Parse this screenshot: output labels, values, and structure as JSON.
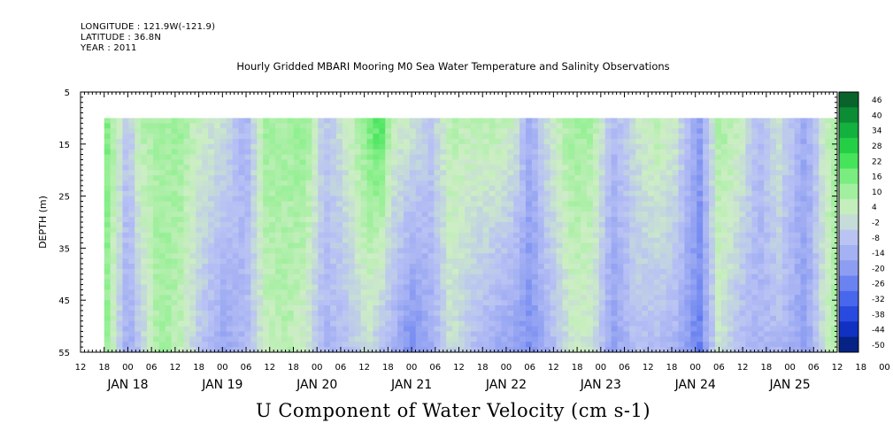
{
  "header": {
    "longitude": "LONGITUDE : 121.9W(-121.9)",
    "latitude": "LATITUDE : 36.8N",
    "year": "YEAR : 2011"
  },
  "chart_data": {
    "type": "heatmap",
    "title": "Hourly Gridded MBARI Mooring M0 Sea Water Temperature and Salinity Observations",
    "xlabel": "U Component of Water Velocity (cm s-1)",
    "ylabel": "DEPTH (m)",
    "y_ticks": [
      5,
      15,
      25,
      35,
      45,
      55
    ],
    "ylim": [
      55,
      5
    ],
    "data_depth_range": [
      10,
      55
    ],
    "hour_tick_labels": [
      "12",
      "18",
      "00",
      "06",
      "12",
      "18",
      "00",
      "06",
      "12",
      "18",
      "00",
      "06",
      "12",
      "18",
      "00",
      "06",
      "12",
      "18",
      "00",
      "06",
      "12",
      "18",
      "00",
      "06",
      "12",
      "18",
      "00",
      "06",
      "12",
      "18",
      "00",
      "06",
      "12",
      "18",
      "00",
      "06",
      "12"
    ],
    "day_labels": [
      "JAN 18",
      "JAN 19",
      "JAN 20",
      "JAN 21",
      "JAN 22",
      "JAN 23",
      "JAN 24",
      "JAN 25"
    ],
    "x_range": [
      "2011-01-17 12:00",
      "2011-01-25 12:00"
    ],
    "data_time_range": [
      "2011-01-17 18:00",
      "2011-01-25 12:00"
    ],
    "colorbar_levels": [
      "46",
      "40",
      "34",
      "28",
      "22",
      "16",
      "10",
      "4",
      "-2",
      "-8",
      "-14",
      "-20",
      "-26",
      "-32",
      "-38",
      "-44",
      "-50"
    ],
    "colorbar_range": [
      -50,
      50
    ],
    "colormap": [
      "#001a66",
      "#1437d6",
      "#4f6df0",
      "#8f9ff2",
      "#b9c2f4",
      "#cdeec4",
      "#8ef08e",
      "#2de04a",
      "#0ea73c",
      "#075d28"
    ],
    "velocity_pattern": [
      {
        "time": "2011-01-17 18:00",
        "u_surface": 22,
        "u_bottom": 18
      },
      {
        "time": "2011-01-17 21:00",
        "u_surface": 8,
        "u_bottom": 2
      },
      {
        "time": "2011-01-18 00:00",
        "u_surface": -6,
        "u_bottom": -14
      },
      {
        "time": "2011-01-18 03:00",
        "u_surface": 10,
        "u_bottom": -4
      },
      {
        "time": "2011-01-18 08:00",
        "u_surface": 12,
        "u_bottom": 14
      },
      {
        "time": "2011-01-18 13:00",
        "u_surface": 14,
        "u_bottom": 8
      },
      {
        "time": "2011-01-18 18:00",
        "u_surface": 6,
        "u_bottom": -4
      },
      {
        "time": "2011-01-19 00:00",
        "u_surface": 2,
        "u_bottom": -14
      },
      {
        "time": "2011-01-19 06:00",
        "u_surface": -10,
        "u_bottom": -8
      },
      {
        "time": "2011-01-19 11:00",
        "u_surface": 14,
        "u_bottom": 6
      },
      {
        "time": "2011-01-19 16:00",
        "u_surface": 12,
        "u_bottom": 10
      },
      {
        "time": "2011-01-19 21:00",
        "u_surface": 16,
        "u_bottom": 4
      },
      {
        "time": "2011-01-20 02:00",
        "u_surface": -4,
        "u_bottom": -10
      },
      {
        "time": "2011-01-20 08:00",
        "u_surface": 6,
        "u_bottom": -6
      },
      {
        "time": "2011-01-20 13:00",
        "u_surface": 18,
        "u_bottom": 2
      },
      {
        "time": "2011-01-20 16:00",
        "u_surface": 26,
        "u_bottom": -6
      },
      {
        "time": "2011-01-20 19:00",
        "u_surface": 8,
        "u_bottom": -10
      },
      {
        "time": "2011-01-21 00:00",
        "u_surface": 4,
        "u_bottom": -22
      },
      {
        "time": "2011-01-21 05:00",
        "u_surface": -4,
        "u_bottom": -12
      },
      {
        "time": "2011-01-21 10:00",
        "u_surface": 10,
        "u_bottom": 2
      },
      {
        "time": "2011-01-21 15:00",
        "u_surface": 8,
        "u_bottom": -6
      },
      {
        "time": "2011-01-21 20:00",
        "u_surface": 10,
        "u_bottom": -12
      },
      {
        "time": "2011-01-22 02:00",
        "u_surface": 6,
        "u_bottom": -16
      },
      {
        "time": "2011-01-22 06:00",
        "u_surface": -12,
        "u_bottom": -20
      },
      {
        "time": "2011-01-22 11:00",
        "u_surface": 4,
        "u_bottom": -10
      },
      {
        "time": "2011-01-22 17:00",
        "u_surface": 14,
        "u_bottom": 4
      },
      {
        "time": "2011-01-22 22:00",
        "u_surface": 12,
        "u_bottom": 2
      },
      {
        "time": "2011-01-23 03:00",
        "u_surface": -8,
        "u_bottom": -16
      },
      {
        "time": "2011-01-23 09:00",
        "u_surface": 2,
        "u_bottom": -6
      },
      {
        "time": "2011-01-23 14:00",
        "u_surface": 10,
        "u_bottom": -8
      },
      {
        "time": "2011-01-23 19:00",
        "u_surface": 4,
        "u_bottom": -10
      },
      {
        "time": "2011-01-24 01:00",
        "u_surface": -16,
        "u_bottom": -24
      },
      {
        "time": "2011-01-24 06:00",
        "u_surface": 12,
        "u_bottom": 4
      },
      {
        "time": "2011-01-24 11:00",
        "u_surface": 8,
        "u_bottom": -8
      },
      {
        "time": "2011-01-24 16:00",
        "u_surface": -8,
        "u_bottom": -10
      },
      {
        "time": "2011-01-24 21:00",
        "u_surface": 4,
        "u_bottom": -8
      },
      {
        "time": "2011-01-25 04:00",
        "u_surface": -14,
        "u_bottom": -16
      },
      {
        "time": "2011-01-25 09:00",
        "u_surface": 6,
        "u_bottom": 4
      },
      {
        "time": "2011-01-25 12:00",
        "u_surface": 14,
        "u_bottom": 12
      }
    ]
  }
}
